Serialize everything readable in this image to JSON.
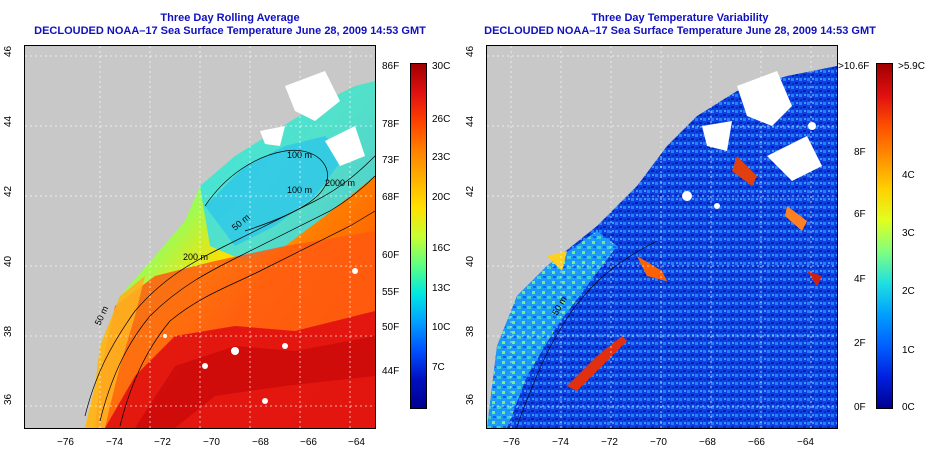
{
  "left_panel": {
    "title_line1": "Three Day Rolling Average",
    "title_line2": "DECLOUDED NOAA–17 Sea Surface Temperature June 28, 2009 14:53 GMT",
    "colorbar": {
      "f_labels": [
        "86F",
        "78F",
        "73F",
        "68F",
        "60F",
        "55F",
        "50F",
        "44F"
      ],
      "c_labels": [
        "30C",
        "26C",
        "23C",
        "20C",
        "16C",
        "13C",
        "10C",
        "7C"
      ],
      "colors": [
        "#c80000",
        "#ff2000",
        "#ff6a00",
        "#ffb000",
        "#ffe000",
        "#c8ff20",
        "#40ff90",
        "#00e0ff",
        "#00a0ff",
        "#0040ff",
        "#0000b0"
      ]
    },
    "contour_labels": [
      "100 m",
      "100 m",
      "2000 m",
      "50 m",
      "200 m",
      "50 m"
    ]
  },
  "right_panel": {
    "title_line1": "Three Day Temperature Variability",
    "title_line2": "DECLOUDED NOAA–17 Sea Surface Temperature June 28, 2009 14:53 GMT",
    "colorbar": {
      "f_labels": [
        ">10.6F",
        "8F",
        "6F",
        "4F",
        "2F",
        "0F"
      ],
      "c_labels": [
        ">5.9C",
        "4C",
        "3C",
        "2C",
        "1C",
        "0C"
      ],
      "colors": [
        "#a00000",
        "#ff2000",
        "#ff8000",
        "#ffd000",
        "#d0ff30",
        "#40ffb0",
        "#00c0ff",
        "#0070ff",
        "#0020ff",
        "#000090"
      ]
    },
    "contour_labels": [
      "50 m"
    ]
  },
  "axes": {
    "lon_labels": [
      "−76",
      "−74",
      "−72",
      "−70",
      "−68",
      "−66",
      "−64"
    ],
    "lat_labels": [
      "46",
      "44",
      "42",
      "40",
      "38",
      "36"
    ]
  },
  "colors": {
    "title": "#1010c0",
    "land": "#c8c8c8",
    "cloud": "#ffffff"
  }
}
